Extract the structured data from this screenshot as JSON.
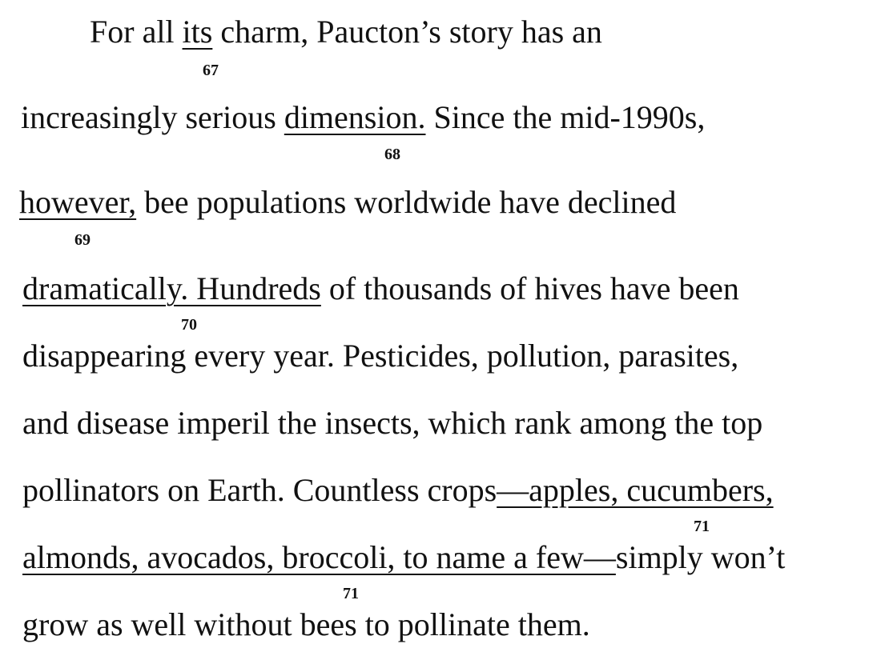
{
  "passage": {
    "l1_a": "For all ",
    "l1_u": "its",
    "l1_b": " charm, Paucton’s story has an",
    "n67": "67",
    "l2_a": "increasingly serious ",
    "l2_u": "dimension.",
    "l2_b": " Since the mid-1990s,",
    "n68": "68",
    "l3_u": "however,",
    "l3_b": " bee populations worldwide have declined",
    "n69": "69",
    "l4_u": "dramatically. Hundreds",
    "l4_b": " of thousands of hives have been",
    "n70": "70",
    "l5": "disappearing every year. Pesticides, pollution, parasites,",
    "l6": "and disease imperil the insects, which rank among the top",
    "l7_a": "pollinators on Earth. Countless crops",
    "l7_u": "—apples, cucumbers,",
    "n71a": "71",
    "l8_u": "almonds, avocados, broccoli, to name a few—",
    "l8_b": "simply won’t",
    "n71b": "71",
    "l9": "grow as well without bees to pollinate them."
  }
}
